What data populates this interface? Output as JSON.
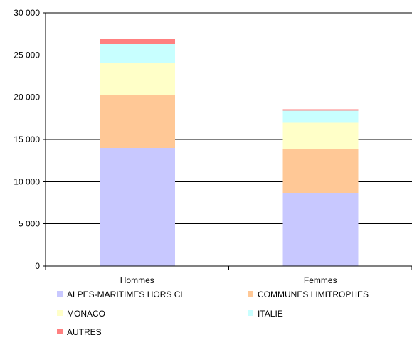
{
  "chart_data": {
    "type": "bar",
    "stacked": true,
    "categories": [
      "Hommes",
      "Femmes"
    ],
    "series": [
      {
        "name": "ALPES-MARITIMES HORS CL",
        "color": "#c8c8ff",
        "values": [
          14000,
          8600
        ]
      },
      {
        "name": "COMMUNES LIMITROPHES",
        "color": "#ffc896",
        "values": [
          6300,
          5300
        ]
      },
      {
        "name": "MONACO",
        "color": "#ffffc8",
        "values": [
          3700,
          3100
        ]
      },
      {
        "name": "ITALIE",
        "color": "#c8ffff",
        "values": [
          2300,
          1400
        ]
      },
      {
        "name": "AUTRES",
        "color": "#ff8080",
        "values": [
          600,
          200
        ]
      }
    ],
    "ylim": [
      0,
      30000
    ],
    "yticks": [
      0,
      5000,
      10000,
      15000,
      20000,
      25000,
      30000
    ],
    "ytick_labels": [
      "0",
      "5 000",
      "10 000",
      "15 000",
      "20 000",
      "25 000",
      "30 000"
    ],
    "grid": true,
    "legend_position": "bottom",
    "title": "",
    "xlabel": "",
    "ylabel": ""
  }
}
